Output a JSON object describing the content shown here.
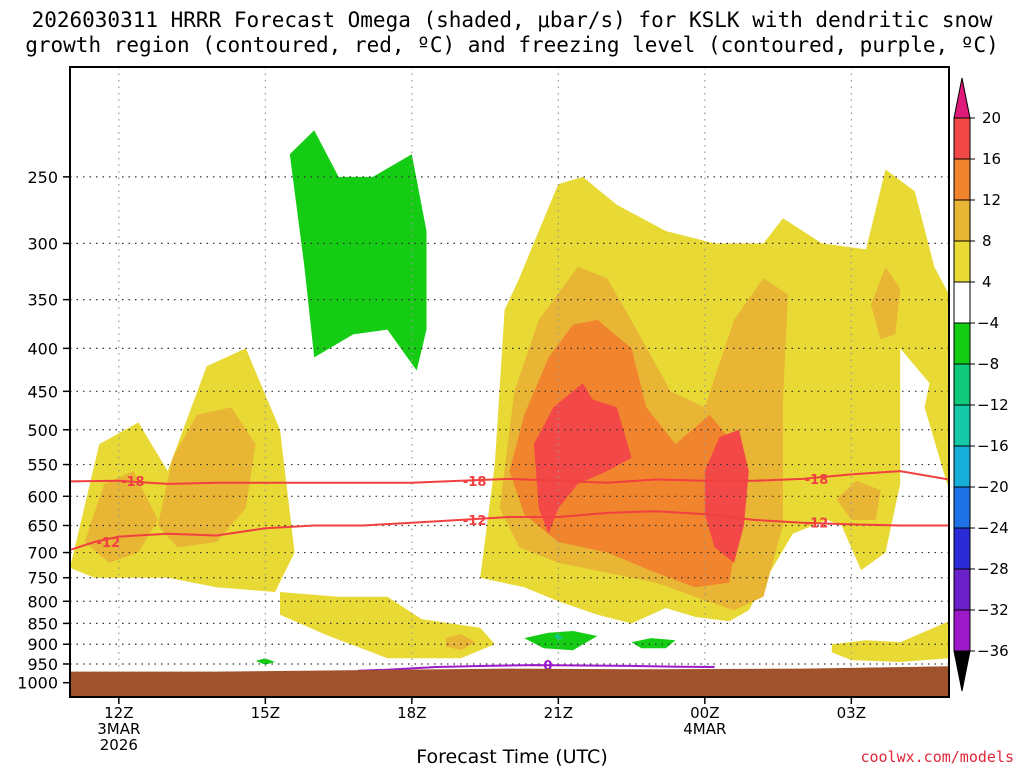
{
  "title": "2026030311 HRRR Forecast Omega (shaded, μbar/s) for KSLK with dendritic snow\ngrowth region (contoured, red, ºC) and freezing level (contoured, purple, ºC)",
  "xlabel": "Forecast Time (UTC)",
  "credit": "coolwx.com/models",
  "colors": {
    "terrain": "#a0522d",
    "snow_growth_contour": "#f04040",
    "freezing_level_contour": "#9b19c8"
  },
  "chart_data": {
    "type": "heatmap",
    "xticks": [
      "12Z\n3MAR\n2026",
      "15Z",
      "18Z",
      "21Z",
      "00Z\n4MAR",
      "03Z"
    ],
    "xlim_hours": [
      11,
      29
    ],
    "yticks": [
      250,
      300,
      350,
      400,
      450,
      500,
      550,
      600,
      650,
      700,
      750,
      800,
      850,
      900,
      950,
      1000
    ],
    "yaxis": "pressure (hPa), inverted, log-spaced",
    "ylim_hPa": [
      1040,
      185
    ],
    "grid": true,
    "colorbar": {
      "levels": [
        -36,
        -32,
        -28,
        -24,
        -20,
        -16,
        -12,
        -8,
        -4,
        4,
        8,
        12,
        16,
        20
      ],
      "colors": [
        "#9c9c9c",
        "#9b19c8",
        "#6a1fc8",
        "#2b2bd8",
        "#1f72e6",
        "#17aeda",
        "#14c8a8",
        "#11c97a",
        "#15cc15",
        "#ffffff",
        "#e8d935",
        "#e8b535",
        "#f0852d",
        "#f24848",
        "#e01a7a"
      ],
      "extend": "both"
    },
    "omega_regions": [
      {
        "level": 4,
        "shape": [
          [
            11.0,
            730
          ],
          [
            11.6,
            520
          ],
          [
            12.4,
            490
          ],
          [
            13.0,
            560
          ],
          [
            13.8,
            420
          ],
          [
            14.6,
            400
          ],
          [
            15.3,
            500
          ],
          [
            15.6,
            700
          ],
          [
            15.2,
            780
          ],
          [
            14.0,
            770
          ],
          [
            13.0,
            750
          ],
          [
            11.5,
            750
          ]
        ]
      },
      {
        "level": 4,
        "shape": [
          [
            15.3,
            780
          ],
          [
            16.5,
            790
          ],
          [
            17.5,
            790
          ],
          [
            18.2,
            840
          ],
          [
            19.4,
            860
          ],
          [
            19.7,
            900
          ],
          [
            19.0,
            935
          ],
          [
            17.5,
            935
          ],
          [
            16.3,
            880
          ],
          [
            15.3,
            830
          ]
        ]
      },
      {
        "level": 4,
        "shape": [
          [
            19.4,
            750
          ],
          [
            19.7,
            550
          ],
          [
            19.9,
            360
          ],
          [
            20.2,
            330
          ],
          [
            20.6,
            290
          ],
          [
            21.0,
            255
          ],
          [
            21.5,
            250
          ],
          [
            22.2,
            270
          ],
          [
            23.2,
            290
          ],
          [
            24.2,
            300
          ],
          [
            25.2,
            300
          ],
          [
            25.6,
            280
          ],
          [
            26.4,
            300
          ],
          [
            27.3,
            305
          ],
          [
            27.7,
            245
          ],
          [
            28.3,
            260
          ],
          [
            28.7,
            320
          ],
          [
            29.0,
            345
          ],
          [
            29.0,
            590
          ],
          [
            28.5,
            470
          ],
          [
            28.6,
            440
          ],
          [
            28.0,
            400
          ],
          [
            28.0,
            580
          ],
          [
            27.7,
            700
          ],
          [
            27.2,
            735
          ],
          [
            26.8,
            650
          ],
          [
            26.5,
            640
          ],
          [
            25.8,
            665
          ],
          [
            25.3,
            745
          ],
          [
            24.9,
            820
          ],
          [
            24.5,
            845
          ],
          [
            23.8,
            835
          ],
          [
            23.2,
            815
          ],
          [
            22.5,
            850
          ],
          [
            21.8,
            830
          ],
          [
            21.0,
            800
          ],
          [
            20.3,
            770
          ]
        ]
      },
      {
        "level": 4,
        "shape": [
          [
            26.6,
            900
          ],
          [
            27.3,
            890
          ],
          [
            28.0,
            895
          ],
          [
            29.0,
            845
          ],
          [
            29.0,
            935
          ],
          [
            28.0,
            945
          ],
          [
            27.0,
            940
          ],
          [
            26.6,
            920
          ]
        ]
      },
      {
        "level": 8,
        "shape": [
          [
            11.3,
            680
          ],
          [
            11.7,
            580
          ],
          [
            12.3,
            560
          ],
          [
            12.8,
            640
          ],
          [
            12.4,
            700
          ],
          [
            11.8,
            720
          ]
        ]
      },
      {
        "level": 8,
        "shape": [
          [
            12.8,
            650
          ],
          [
            13.1,
            540
          ],
          [
            13.6,
            480
          ],
          [
            14.3,
            470
          ],
          [
            14.8,
            520
          ],
          [
            14.6,
            620
          ],
          [
            14.0,
            680
          ],
          [
            13.2,
            690
          ]
        ]
      },
      {
        "level": 8,
        "shape": [
          [
            19.8,
            620
          ],
          [
            20.1,
            450
          ],
          [
            20.6,
            370
          ],
          [
            21.4,
            320
          ],
          [
            22.0,
            330
          ],
          [
            22.6,
            380
          ],
          [
            23.3,
            450
          ],
          [
            24.0,
            470
          ],
          [
            24.6,
            370
          ],
          [
            25.2,
            330
          ],
          [
            25.7,
            345
          ],
          [
            25.6,
            460
          ],
          [
            25.6,
            650
          ],
          [
            25.2,
            790
          ],
          [
            24.6,
            820
          ],
          [
            23.8,
            790
          ],
          [
            23.0,
            760
          ],
          [
            22.0,
            740
          ],
          [
            21.0,
            720
          ],
          [
            20.2,
            690
          ]
        ]
      },
      {
        "level": 8,
        "shape": [
          [
            18.7,
            885
          ],
          [
            19.0,
            875
          ],
          [
            19.3,
            895
          ],
          [
            19.0,
            915
          ],
          [
            18.7,
            905
          ]
        ]
      },
      {
        "level": 8,
        "shape": [
          [
            27.4,
            355
          ],
          [
            27.7,
            320
          ],
          [
            28.0,
            340
          ],
          [
            27.9,
            385
          ],
          [
            27.6,
            390
          ]
        ]
      },
      {
        "level": 8,
        "shape": [
          [
            26.7,
            605
          ],
          [
            27.1,
            575
          ],
          [
            27.6,
            590
          ],
          [
            27.5,
            640
          ],
          [
            27.0,
            640
          ]
        ]
      },
      {
        "level": 12,
        "shape": [
          [
            20.0,
            560
          ],
          [
            20.3,
            480
          ],
          [
            20.8,
            410
          ],
          [
            21.3,
            375
          ],
          [
            21.8,
            370
          ],
          [
            22.5,
            400
          ],
          [
            22.8,
            470
          ],
          [
            23.4,
            520
          ],
          [
            24.1,
            480
          ],
          [
            24.6,
            520
          ],
          [
            24.7,
            650
          ],
          [
            24.5,
            760
          ],
          [
            23.8,
            770
          ],
          [
            23.0,
            740
          ],
          [
            22.0,
            700
          ],
          [
            21.0,
            680
          ],
          [
            20.3,
            630
          ]
        ]
      },
      {
        "level": 16,
        "shape": [
          [
            20.6,
            620
          ],
          [
            20.5,
            520
          ],
          [
            20.9,
            470
          ],
          [
            21.5,
            440
          ],
          [
            21.7,
            460
          ],
          [
            22.2,
            470
          ],
          [
            22.5,
            540
          ],
          [
            22.0,
            560
          ],
          [
            21.4,
            580
          ],
          [
            21.0,
            620
          ],
          [
            20.8,
            665
          ]
        ]
      },
      {
        "level": 16,
        "shape": [
          [
            24.0,
            560
          ],
          [
            24.3,
            510
          ],
          [
            24.7,
            500
          ],
          [
            24.9,
            560
          ],
          [
            24.8,
            650
          ],
          [
            24.6,
            720
          ],
          [
            24.2,
            690
          ],
          [
            24.0,
            630
          ]
        ]
      },
      {
        "level": -4,
        "shape": [
          [
            16.0,
            410
          ],
          [
            15.8,
            320
          ],
          [
            15.5,
            235
          ],
          [
            16.0,
            220
          ],
          [
            16.5,
            250
          ],
          [
            17.2,
            250
          ],
          [
            18.0,
            235
          ],
          [
            18.3,
            290
          ],
          [
            18.3,
            380
          ],
          [
            18.1,
            425
          ],
          [
            17.5,
            380
          ],
          [
            16.8,
            385
          ]
        ]
      },
      {
        "level": -4,
        "shape": [
          [
            20.3,
            885
          ],
          [
            20.8,
            872
          ],
          [
            21.3,
            868
          ],
          [
            21.8,
            880
          ],
          [
            21.3,
            915
          ],
          [
            20.7,
            910
          ]
        ]
      },
      {
        "level": -4,
        "shape": [
          [
            22.5,
            895
          ],
          [
            22.9,
            885
          ],
          [
            23.4,
            890
          ],
          [
            23.2,
            910
          ],
          [
            22.7,
            910
          ]
        ]
      },
      {
        "level": -4,
        "shape": [
          [
            14.8,
            942
          ],
          [
            15.0,
            935
          ],
          [
            15.2,
            945
          ],
          [
            15.0,
            952
          ]
        ]
      },
      {
        "level": -8,
        "shape": [
          [
            20.9,
            880
          ],
          [
            21.0,
            875
          ],
          [
            21.1,
            885
          ],
          [
            21.0,
            890
          ]
        ]
      }
    ],
    "snow_growth_contours": [
      {
        "label": "-18",
        "hours": [
          11.0,
          12.0,
          13.0,
          14.0,
          15.0,
          16.0,
          17.0,
          18.0,
          19.0,
          20.0,
          21.0,
          22.0,
          23.0,
          24.0,
          25.0,
          26.0,
          27.0,
          28.0,
          29.0
        ],
        "pressure": [
          576,
          575,
          580,
          578,
          578,
          578,
          578,
          578,
          575,
          572,
          575,
          578,
          573,
          575,
          575,
          572,
          565,
          560,
          573
        ]
      },
      {
        "label": "-12",
        "hours": [
          11.0,
          11.5,
          12.0,
          13.0,
          14.0,
          15.0,
          16.0,
          17.0,
          18.0,
          19.0,
          20.0,
          21.0,
          22.0,
          23.0,
          24.0,
          25.0,
          26.0,
          27.0,
          28.0,
          29.0
        ],
        "pressure": [
          695,
          680,
          670,
          665,
          668,
          655,
          650,
          650,
          645,
          640,
          635,
          635,
          628,
          625,
          630,
          640,
          645,
          648,
          650,
          650
        ]
      }
    ],
    "freezing_level_contours": [
      {
        "label": "0",
        "hours": [
          16.9,
          17.5,
          18.5,
          19.5,
          20.5,
          21.5,
          22.5,
          23.5,
          24.2
        ],
        "pressure": [
          968,
          965,
          958,
          955,
          953,
          954,
          955,
          957,
          958
        ]
      }
    ],
    "terrain_top_hPa": [
      {
        "hours": 11.0,
        "pressure": 970
      },
      {
        "hours": 14.0,
        "pressure": 970
      },
      {
        "hours": 17.0,
        "pressure": 966
      },
      {
        "hours": 20.0,
        "pressure": 962
      },
      {
        "hours": 23.0,
        "pressure": 964
      },
      {
        "hours": 26.0,
        "pressure": 962
      },
      {
        "hours": 29.0,
        "pressure": 956
      }
    ]
  }
}
